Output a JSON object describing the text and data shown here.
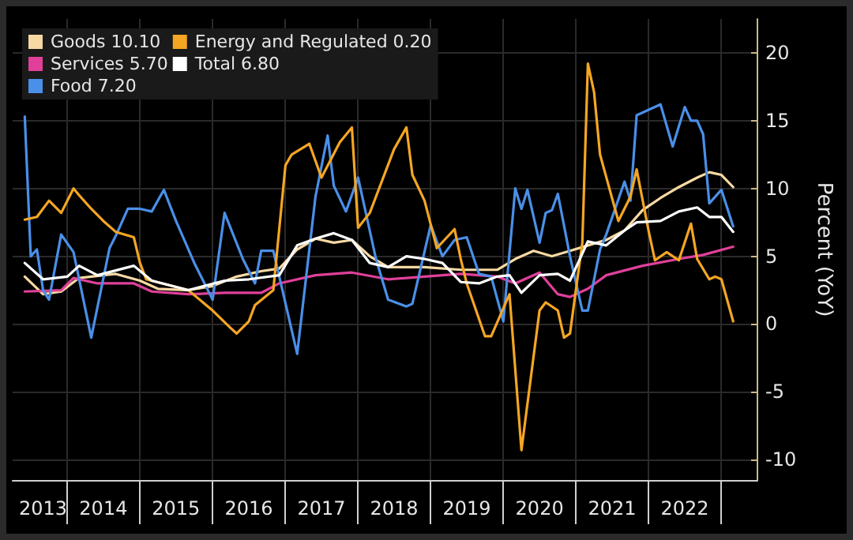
{
  "chart_data": {
    "type": "line",
    "ylabel": "Percent (YoY)",
    "ylim": [
      -11.5,
      22.5
    ],
    "yticks": [
      -10,
      -5,
      0,
      5,
      10,
      15,
      20
    ],
    "xlim": [
      "2013-04",
      "2023-07"
    ],
    "xticks": [
      {
        "value": "2013-09",
        "label": "2013"
      },
      {
        "value": "2014-07",
        "label": "2014"
      },
      {
        "value": "2015-07",
        "label": "2015"
      },
      {
        "value": "2016-07",
        "label": "2016"
      },
      {
        "value": "2017-07",
        "label": "2017"
      },
      {
        "value": "2018-07",
        "label": "2018"
      },
      {
        "value": "2019-07",
        "label": "2019"
      },
      {
        "value": "2020-07",
        "label": "2020"
      },
      {
        "value": "2021-07",
        "label": "2021"
      },
      {
        "value": "2022-07",
        "label": "2022"
      },
      {
        "value": "2014-01",
        "label": null
      },
      {
        "value": "2015-01",
        "label": null
      },
      {
        "value": "2016-01",
        "label": null
      },
      {
        "value": "2017-01",
        "label": null
      },
      {
        "value": "2018-01",
        "label": null
      },
      {
        "value": "2019-01",
        "label": null
      },
      {
        "value": "2020-01",
        "label": null
      },
      {
        "value": "2021-01",
        "label": null
      },
      {
        "value": "2022-01",
        "label": null
      },
      {
        "value": "2023-01",
        "label": null
      }
    ],
    "grid": true,
    "legend": "top left",
    "marker": "none",
    "line_style": "solid",
    "series": [
      {
        "name": "Goods 10.10",
        "color": "#f7d9a3",
        "x": [
          "2013-06",
          "2013-09",
          "2013-12",
          "2014-03",
          "2014-09",
          "2015-01",
          "2015-04",
          "2015-09",
          "2016-01",
          "2016-05",
          "2016-09",
          "2016-12",
          "2017-03",
          "2017-06",
          "2017-09",
          "2017-12",
          "2018-03",
          "2018-06",
          "2018-12",
          "2019-06",
          "2019-12",
          "2020-03",
          "2020-06",
          "2020-09",
          "2020-12",
          "2021-03",
          "2021-06",
          "2021-09",
          "2021-12",
          "2022-03",
          "2022-06",
          "2022-09",
          "2022-11",
          "2023-01",
          "2023-03"
        ],
        "values": [
          3.5,
          2.2,
          2.4,
          3.4,
          3.7,
          3.2,
          2.6,
          2.5,
          2.8,
          3.5,
          3.9,
          4.1,
          5.5,
          6.3,
          6.0,
          6.2,
          5.0,
          4.2,
          4.2,
          4.0,
          4.0,
          4.8,
          5.4,
          5.0,
          5.4,
          5.8,
          6.2,
          6.9,
          8.4,
          9.3,
          10.1,
          10.8,
          11.2,
          11.0,
          10.1
        ]
      },
      {
        "name": "Services 5.70",
        "color": "#e0409a",
        "x": [
          "2013-06",
          "2013-12",
          "2014-02",
          "2014-06",
          "2014-12",
          "2015-03",
          "2015-09",
          "2016-03",
          "2016-09",
          "2016-12",
          "2017-06",
          "2017-12",
          "2018-06",
          "2018-12",
          "2019-06",
          "2019-12",
          "2020-03",
          "2020-07",
          "2020-10",
          "2020-12",
          "2021-03",
          "2021-06",
          "2021-12",
          "2022-06",
          "2022-10",
          "2023-03"
        ],
        "values": [
          2.4,
          2.5,
          3.4,
          3.0,
          3.0,
          2.4,
          2.2,
          2.3,
          2.3,
          3.0,
          3.6,
          3.8,
          3.3,
          3.5,
          3.7,
          3.5,
          3.0,
          3.8,
          2.2,
          2.0,
          2.6,
          3.6,
          4.3,
          4.8,
          5.1,
          5.7
        ]
      },
      {
        "name": "Food 7.20",
        "color": "#4a8fe8",
        "x": [
          "2013-06",
          "2013-07",
          "2013-08",
          "2013-09",
          "2013-10",
          "2013-12",
          "2014-02",
          "2014-05",
          "2014-08",
          "2014-09",
          "2014-11",
          "2015-01",
          "2015-03",
          "2015-05",
          "2015-07",
          "2015-10",
          "2016-01",
          "2016-03",
          "2016-06",
          "2016-08",
          "2016-09",
          "2016-11",
          "2017-03",
          "2017-06",
          "2017-08",
          "2017-09",
          "2017-11",
          "2018-01",
          "2018-04",
          "2018-06",
          "2018-09",
          "2018-10",
          "2019-01",
          "2019-03",
          "2019-05",
          "2019-07",
          "2019-09",
          "2019-11",
          "2020-01",
          "2020-03",
          "2020-04",
          "2020-05",
          "2020-07",
          "2020-08",
          "2020-09",
          "2020-10",
          "2020-12",
          "2021-02",
          "2021-03",
          "2021-05",
          "2021-06",
          "2021-09",
          "2021-10",
          "2021-11",
          "2022-01",
          "2022-03",
          "2022-05",
          "2022-07",
          "2022-08",
          "2022-09",
          "2022-10",
          "2022-11",
          "2023-01",
          "2023-03"
        ],
        "values": [
          15.3,
          5.0,
          5.5,
          2.5,
          1.8,
          6.6,
          5.3,
          -1.0,
          5.6,
          6.5,
          8.5,
          8.5,
          8.3,
          9.9,
          7.6,
          4.5,
          1.8,
          8.2,
          4.8,
          3.0,
          5.4,
          5.4,
          -2.2,
          9.4,
          13.9,
          10.2,
          8.3,
          10.8,
          4.8,
          1.8,
          1.3,
          1.5,
          7.3,
          5.0,
          6.2,
          6.4,
          3.7,
          3.5,
          0.2,
          10.0,
          8.5,
          9.9,
          6.0,
          8.2,
          8.4,
          9.6,
          5.0,
          1.0,
          1.0,
          5.5,
          6.6,
          10.5,
          9.1,
          15.4,
          15.8,
          16.2,
          13.1,
          16.0,
          15.0,
          15.0,
          14.0,
          8.9,
          9.9,
          7.2
        ]
      },
      {
        "name": "Energy and Regulated 0.20",
        "color": "#f5a623",
        "x": [
          "2013-06",
          "2013-08",
          "2013-10",
          "2013-12",
          "2014-02",
          "2014-03",
          "2014-05",
          "2014-07",
          "2014-09",
          "2014-12",
          "2015-01",
          "2015-02",
          "2015-09",
          "2016-01",
          "2016-04",
          "2016-05",
          "2016-07",
          "2016-08",
          "2016-11",
          "2017-01",
          "2017-02",
          "2017-05",
          "2017-07",
          "2017-10",
          "2017-12",
          "2018-01",
          "2018-03",
          "2018-07",
          "2018-09",
          "2018-10",
          "2018-12",
          "2019-02",
          "2019-05",
          "2019-06",
          "2019-07",
          "2019-10",
          "2019-11",
          "2020-02",
          "2020-04",
          "2020-05",
          "2020-07",
          "2020-08",
          "2020-10",
          "2020-11",
          "2020-12",
          "2021-02",
          "2021-03",
          "2021-04",
          "2021-05",
          "2021-08",
          "2021-10",
          "2021-11",
          "2022-01",
          "2022-02",
          "2022-04",
          "2022-06",
          "2022-08",
          "2022-09",
          "2022-11",
          "2022-12",
          "2023-01",
          "2023-03"
        ],
        "values": [
          7.7,
          7.9,
          9.1,
          8.2,
          10.0,
          9.5,
          8.5,
          7.6,
          6.8,
          6.4,
          4.5,
          3.3,
          2.5,
          1.0,
          -0.3,
          -0.7,
          0.2,
          1.4,
          2.5,
          11.7,
          12.5,
          13.3,
          10.8,
          13.4,
          14.5,
          7.1,
          8.2,
          12.9,
          14.5,
          11.0,
          9.1,
          5.6,
          7.0,
          4.8,
          3.0,
          -0.9,
          -0.9,
          2.2,
          -9.3,
          -5.9,
          1.0,
          1.6,
          1.0,
          -1.0,
          -0.7,
          6.0,
          19.2,
          17.1,
          12.5,
          7.6,
          9.4,
          11.4,
          6.8,
          4.7,
          5.3,
          4.7,
          7.4,
          4.8,
          3.3,
          3.5,
          3.3,
          0.2
        ]
      },
      {
        "name": "Total 6.80",
        "color": "#ffffff",
        "x": [
          "2013-06",
          "2013-09",
          "2014-01",
          "2014-03",
          "2014-06",
          "2014-12",
          "2015-03",
          "2015-09",
          "2016-03",
          "2016-07",
          "2016-12",
          "2017-03",
          "2017-06",
          "2017-09",
          "2017-12",
          "2018-03",
          "2018-06",
          "2018-09",
          "2018-12",
          "2019-03",
          "2019-06",
          "2019-09",
          "2019-12",
          "2020-02",
          "2020-04",
          "2020-07",
          "2020-10",
          "2020-12",
          "2021-03",
          "2021-06",
          "2021-09",
          "2021-11",
          "2022-03",
          "2022-06",
          "2022-09",
          "2022-11",
          "2023-01",
          "2023-03"
        ],
        "values": [
          4.5,
          3.3,
          3.5,
          4.3,
          3.6,
          4.3,
          3.2,
          2.5,
          3.2,
          3.3,
          3.6,
          5.8,
          6.3,
          6.7,
          6.2,
          4.5,
          4.2,
          5.0,
          4.8,
          4.5,
          3.1,
          3.0,
          3.5,
          3.6,
          2.3,
          3.6,
          3.7,
          3.2,
          6.1,
          5.8,
          6.9,
          7.5,
          7.6,
          8.3,
          8.6,
          7.9,
          7.9,
          6.8
        ]
      }
    ]
  }
}
